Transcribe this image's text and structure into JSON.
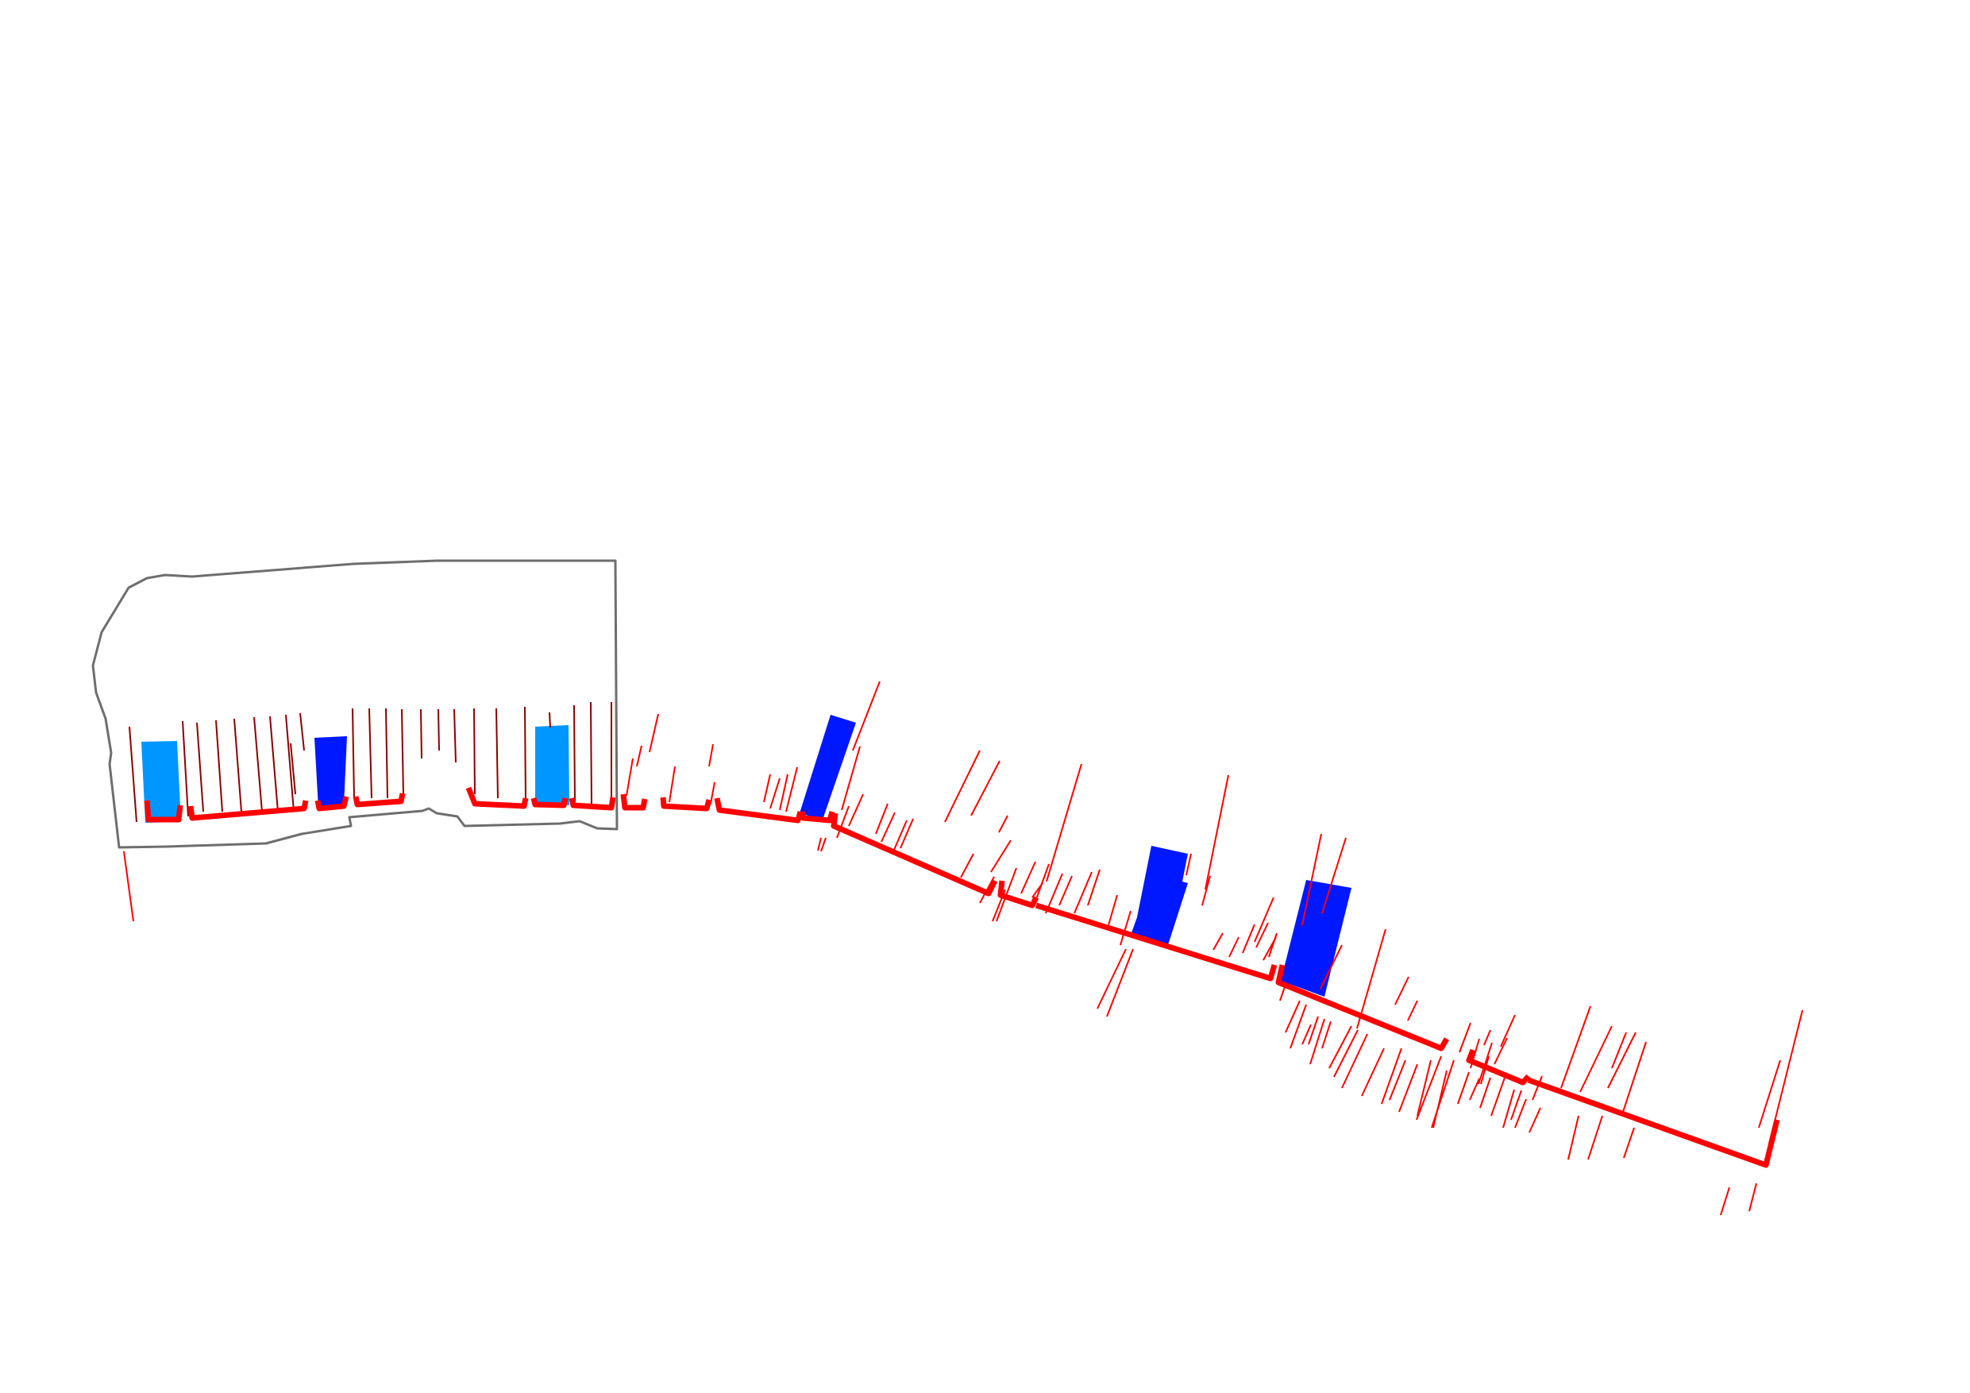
{
  "map": {
    "colors": {
      "background": "#ffffff",
      "parcel_outline": "#6e6e6e",
      "main_line": "#ff0000",
      "tick_dark": "#8b0000",
      "tick_bright": "#ff0000",
      "block_light": "#0096ff",
      "block_dark": "#0018ff"
    }
  }
}
